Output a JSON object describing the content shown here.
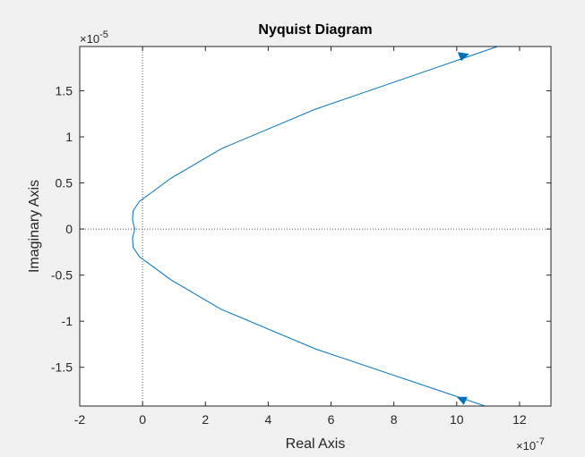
{
  "chart_data": {
    "type": "line",
    "title": "Nyquist Diagram",
    "xlabel": "Real Axis",
    "ylabel": "Imaginary Axis",
    "x_scale_label": "×10",
    "x_scale_exp": "-7",
    "y_scale_label": "×10",
    "y_scale_exp": "-5",
    "xlim": [
      -2,
      13
    ],
    "ylim": [
      -1.92,
      1.98
    ],
    "x_ticks": [
      -2,
      0,
      2,
      4,
      6,
      8,
      10,
      12
    ],
    "x_tick_labels": [
      "-2",
      "0",
      "2",
      "4",
      "6",
      "8",
      "10",
      "12"
    ],
    "y_ticks": [
      -1.5,
      -1,
      -0.5,
      0,
      0.5,
      1,
      1.5
    ],
    "y_tick_labels": [
      "-1.5",
      "-1",
      "-0.5",
      "0",
      "0.5",
      "1",
      "1.5"
    ],
    "grid": false,
    "series_color": "#0072bd",
    "series": [
      {
        "x": [
          -0.25,
          -0.32,
          -0.3,
          -0.1,
          0.3,
          0.9,
          2.5,
          5.5,
          11.3
        ],
        "y": [
          0.0,
          0.1,
          0.2,
          0.3,
          0.4,
          0.55,
          0.87,
          1.3,
          2.0
        ]
      },
      {
        "x": [
          -0.25,
          -0.32,
          -0.3,
          -0.1,
          0.3,
          0.9,
          2.5,
          5.5,
          10.9
        ],
        "y": [
          0.0,
          -0.1,
          -0.2,
          -0.3,
          -0.4,
          -0.55,
          -0.87,
          -1.3,
          -1.92
        ]
      }
    ],
    "arrows": [
      {
        "x": 10.2,
        "y": 1.87,
        "direction": "up-right"
      },
      {
        "x": 10.2,
        "y": -1.86,
        "direction": "up-left"
      }
    ],
    "reference_lines": {
      "x": 0,
      "y": 0,
      "style": "dotted"
    }
  }
}
